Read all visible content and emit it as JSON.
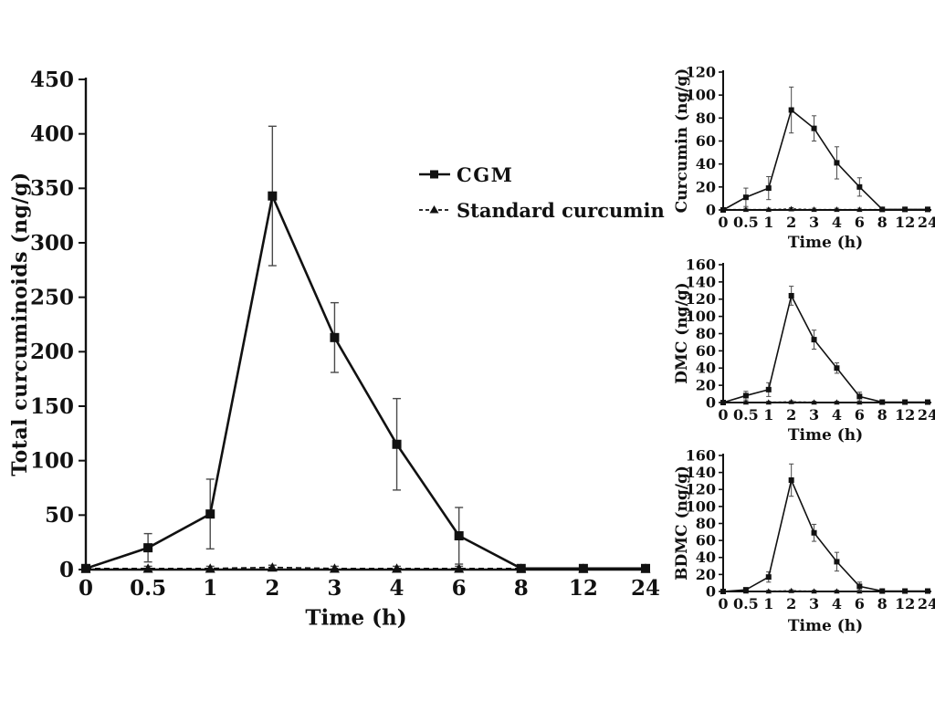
{
  "figure": {
    "background": "#ffffff",
    "ink_color": "#111111",
    "error_bar_color": "#4a4a4a"
  },
  "legend": {
    "items": [
      {
        "label": "CGM",
        "marker": "square",
        "line": "solid"
      },
      {
        "label": "Standard curcumin",
        "marker": "triangle",
        "line": "dashed"
      }
    ]
  },
  "chart_data": [
    {
      "id": "main",
      "type": "line",
      "title": "",
      "xlabel": "Time (h)",
      "ylabel": "Total curcuminoids (ng/g)",
      "categories": [
        "0",
        "0.5",
        "1",
        "2",
        "3",
        "4",
        "6",
        "8",
        "12",
        "24"
      ],
      "ylim": [
        0,
        450
      ],
      "ytick_step": 50,
      "grid": false,
      "legend_position": "inside-right",
      "series": [
        {
          "name": "CGM",
          "marker": "square",
          "line": "solid",
          "values": [
            1,
            20,
            51,
            343,
            213,
            115,
            31,
            1,
            1,
            1
          ],
          "errors": [
            0,
            13,
            32,
            64,
            32,
            42,
            26,
            2,
            2,
            2
          ]
        },
        {
          "name": "Standard curcumin",
          "marker": "triangle",
          "line": "dashed",
          "values": [
            1,
            1,
            1,
            2,
            1,
            1,
            1,
            1,
            1,
            1
          ],
          "errors": [
            1,
            2,
            2,
            2,
            2,
            2,
            2,
            1.5,
            1.5,
            1.5
          ]
        }
      ]
    },
    {
      "id": "curcumin",
      "type": "line",
      "title": "",
      "xlabel": "Time (h)",
      "ylabel": "Curcumin (ng/g)",
      "categories": [
        "0",
        "0.5",
        "1",
        "2",
        "3",
        "4",
        "6",
        "8",
        "12",
        "24"
      ],
      "ylim": [
        0,
        120
      ],
      "ytick_step": 20,
      "grid": false,
      "series": [
        {
          "name": "CGM",
          "marker": "square",
          "line": "solid",
          "values": [
            0,
            11,
            19,
            87,
            71,
            41,
            20,
            0.5,
            0.5,
            0.5
          ],
          "errors": [
            0,
            8,
            10,
            20,
            11,
            14,
            8,
            1,
            1,
            1
          ]
        },
        {
          "name": "Standard curcumin",
          "marker": "triangle",
          "line": "dashed",
          "values": [
            0.5,
            0.5,
            0.5,
            1,
            0.5,
            0.5,
            0.5,
            0.5,
            0.5,
            0.5
          ],
          "errors": [
            1,
            1,
            1,
            1,
            1,
            1,
            1,
            1,
            1,
            1
          ]
        }
      ]
    },
    {
      "id": "dmc",
      "type": "line",
      "title": "",
      "xlabel": "Time (h)",
      "ylabel": "DMC (ng/g)",
      "categories": [
        "0",
        "0.5",
        "1",
        "2",
        "3",
        "4",
        "6",
        "8",
        "12",
        "24"
      ],
      "ylim": [
        0,
        160
      ],
      "ytick_step": 20,
      "grid": false,
      "series": [
        {
          "name": "CGM",
          "marker": "square",
          "line": "solid",
          "values": [
            0,
            8,
            15,
            124,
            73,
            40,
            7,
            0.5,
            0.5,
            0.5
          ],
          "errors": [
            0,
            5,
            8,
            11,
            11,
            6,
            5,
            1,
            1,
            1
          ]
        },
        {
          "name": "Standard curcumin",
          "marker": "triangle",
          "line": "dashed",
          "values": [
            0.5,
            0.5,
            0.5,
            1,
            0.5,
            0.5,
            0.5,
            0.5,
            0.5,
            0.5
          ],
          "errors": [
            1,
            1,
            1,
            1,
            1,
            1,
            1,
            1,
            1,
            1
          ]
        }
      ]
    },
    {
      "id": "bdmc",
      "type": "line",
      "title": "",
      "xlabel": "Time (h)",
      "ylabel": "BDMC (ng/g)",
      "categories": [
        "0",
        "0.5",
        "1",
        "2",
        "3",
        "4",
        "6",
        "8",
        "12",
        "24"
      ],
      "ylim": [
        0,
        160
      ],
      "ytick_step": 20,
      "grid": false,
      "series": [
        {
          "name": "CGM",
          "marker": "square",
          "line": "solid",
          "values": [
            0,
            2,
            17,
            131,
            69,
            35,
            6,
            0.5,
            0.5,
            0.5
          ],
          "errors": [
            0,
            1.5,
            6,
            19,
            10,
            11,
            5,
            1,
            1,
            1
          ]
        },
        {
          "name": "Standard curcumin",
          "marker": "triangle",
          "line": "dashed",
          "values": [
            0.5,
            0.5,
            0.5,
            1,
            0.5,
            0.5,
            0.5,
            0.5,
            0.5,
            0.5
          ],
          "errors": [
            1,
            1,
            1,
            1,
            1,
            1,
            1,
            1,
            1,
            1
          ]
        }
      ]
    }
  ]
}
